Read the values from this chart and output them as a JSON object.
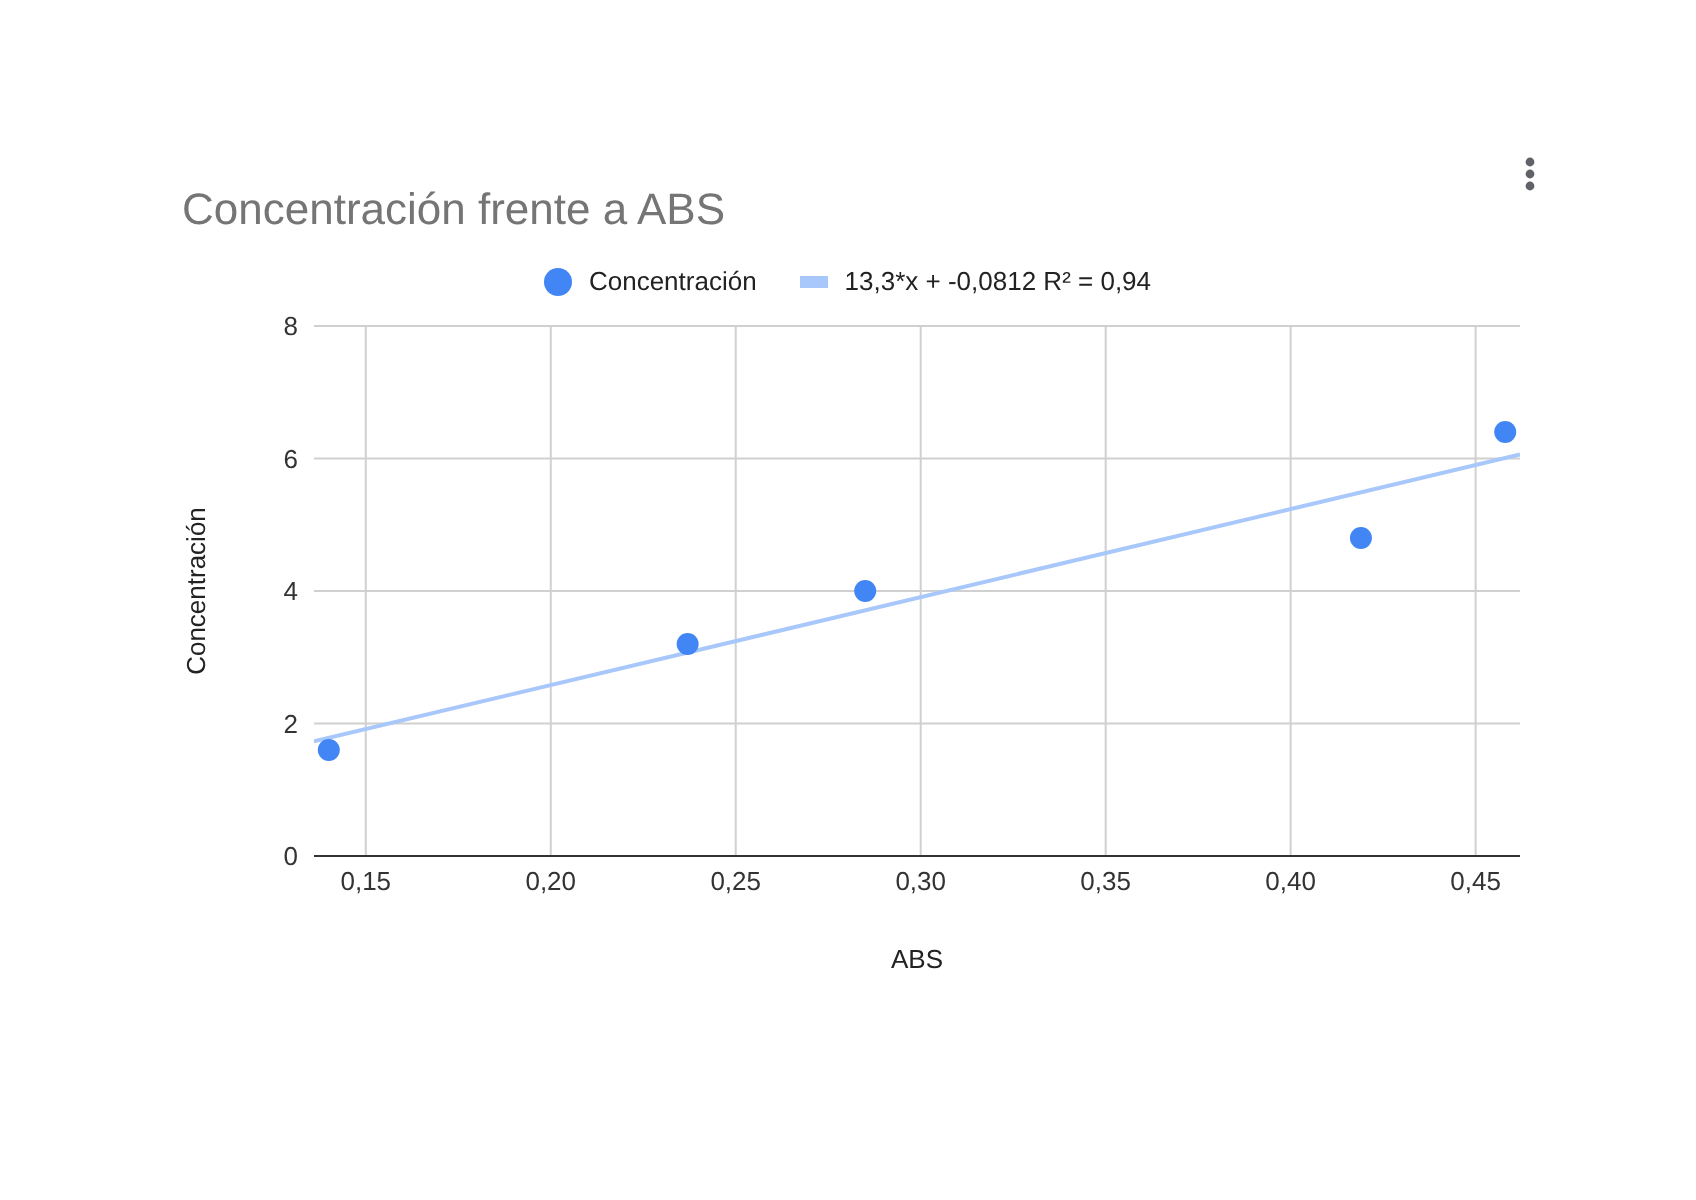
{
  "chart_data": {
    "type": "scatter",
    "title": "Concentración frente a ABS",
    "xlabel": "ABS",
    "ylabel": "Concentración",
    "x": [
      0.14,
      0.237,
      0.285,
      0.419,
      0.458
    ],
    "series": [
      {
        "name": "Concentración",
        "color": "#4285f4",
        "marker": "circle",
        "values": [
          1.6,
          3.2,
          4.0,
          4.8,
          6.4
        ]
      },
      {
        "name": "13,3*x + -0,0812 R² = 0,94",
        "type": "line",
        "marker": "none",
        "color": "#a8c7fa",
        "x": [
          0.136,
          0.462
        ],
        "values": [
          1.73,
          6.06
        ]
      }
    ],
    "xlim": [
      0.136,
      0.462
    ],
    "xticks": [
      {
        "value": 0.15,
        "label": "0,15"
      },
      {
        "value": 0.2,
        "label": "0,20"
      },
      {
        "value": 0.25,
        "label": "0,25"
      },
      {
        "value": 0.3,
        "label": "0,30"
      },
      {
        "value": 0.35,
        "label": "0,35"
      },
      {
        "value": 0.4,
        "label": "0,40"
      },
      {
        "value": 0.45,
        "label": "0,45"
      }
    ],
    "ylim": [
      0,
      8
    ],
    "yticks": [
      0,
      2,
      4,
      6,
      8
    ],
    "grid": true,
    "legend": "top"
  }
}
